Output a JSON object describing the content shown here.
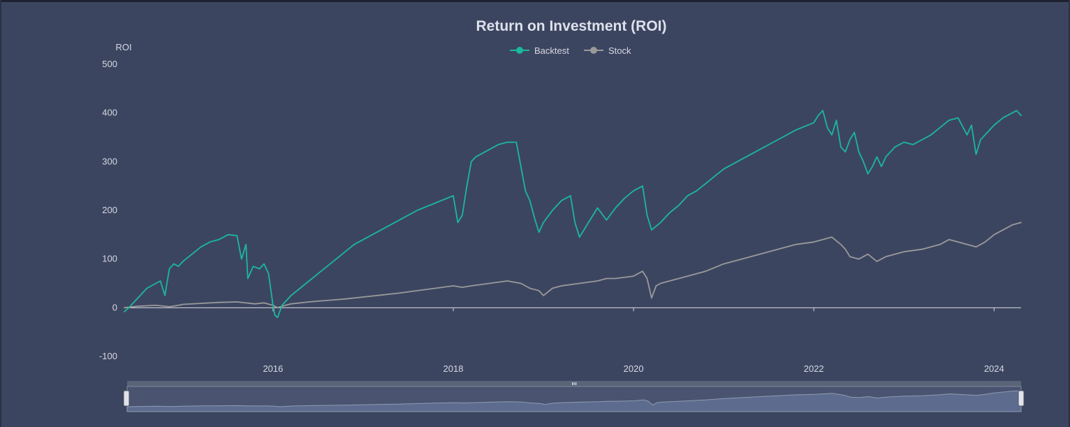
{
  "chart_data": {
    "type": "line",
    "title": "Return on Investment (ROI)",
    "ylabel": "ROI",
    "xlabel": "",
    "ylim": [
      -100,
      500
    ],
    "yticks": [
      -100,
      0,
      100,
      200,
      300,
      400,
      500
    ],
    "xlim": [
      2014.35,
      2024.3
    ],
    "xticks": [
      2016,
      2018,
      2020,
      2022,
      2024
    ],
    "grid": false,
    "legend_position": "top-center",
    "series": [
      {
        "name": "Backtest",
        "color": "#1ab89c",
        "x": [
          2014.35,
          2014.4,
          2014.5,
          2014.6,
          2014.7,
          2014.75,
          2014.8,
          2014.85,
          2014.9,
          2014.95,
          2015.0,
          2015.1,
          2015.2,
          2015.3,
          2015.4,
          2015.5,
          2015.6,
          2015.65,
          2015.7,
          2015.72,
          2015.78,
          2015.85,
          2015.9,
          2015.95,
          2016.0,
          2016.02,
          2016.05,
          2016.1,
          2016.15,
          2016.2,
          2016.3,
          2016.4,
          2016.5,
          2016.6,
          2016.7,
          2016.8,
          2016.9,
          2017.0,
          2017.2,
          2017.4,
          2017.6,
          2017.8,
          2018.0,
          2018.05,
          2018.1,
          2018.15,
          2018.2,
          2018.25,
          2018.3,
          2018.4,
          2018.5,
          2018.6,
          2018.7,
          2018.75,
          2018.8,
          2018.85,
          2018.9,
          2018.95,
          2019.0,
          2019.1,
          2019.2,
          2019.3,
          2019.35,
          2019.4,
          2019.5,
          2019.6,
          2019.7,
          2019.8,
          2019.9,
          2020.0,
          2020.1,
          2020.15,
          2020.2,
          2020.3,
          2020.4,
          2020.5,
          2020.6,
          2020.7,
          2020.8,
          2020.9,
          2021.0,
          2021.2,
          2021.4,
          2021.6,
          2021.8,
          2022.0,
          2022.05,
          2022.1,
          2022.15,
          2022.2,
          2022.25,
          2022.3,
          2022.35,
          2022.4,
          2022.45,
          2022.5,
          2022.55,
          2022.6,
          2022.65,
          2022.7,
          2022.75,
          2022.8,
          2022.9,
          2023.0,
          2023.1,
          2023.2,
          2023.3,
          2023.4,
          2023.5,
          2023.6,
          2023.7,
          2023.75,
          2023.8,
          2023.85,
          2023.9,
          2023.95,
          2024.0,
          2024.1,
          2024.2,
          2024.25,
          2024.3
        ],
        "y": [
          -8,
          0,
          20,
          40,
          50,
          55,
          25,
          80,
          90,
          85,
          95,
          110,
          125,
          135,
          140,
          150,
          148,
          100,
          130,
          60,
          85,
          80,
          90,
          70,
          5,
          -15,
          -20,
          5,
          15,
          25,
          40,
          55,
          70,
          85,
          100,
          115,
          130,
          140,
          160,
          180,
          200,
          215,
          230,
          175,
          190,
          250,
          300,
          310,
          315,
          325,
          335,
          340,
          340,
          290,
          240,
          220,
          185,
          155,
          175,
          200,
          220,
          230,
          175,
          145,
          175,
          205,
          180,
          205,
          225,
          240,
          250,
          190,
          160,
          175,
          195,
          210,
          230,
          240,
          255,
          270,
          285,
          305,
          325,
          345,
          365,
          380,
          395,
          405,
          370,
          355,
          385,
          330,
          320,
          345,
          360,
          320,
          300,
          275,
          290,
          310,
          290,
          310,
          330,
          340,
          335,
          345,
          355,
          370,
          385,
          390,
          355,
          375,
          315,
          345,
          355,
          365,
          375,
          390,
          400,
          405,
          395
        ]
      },
      {
        "name": "Stock",
        "color": "#9a9a9a",
        "x": [
          2014.35,
          2014.5,
          2014.7,
          2014.85,
          2014.95,
          2015.0,
          2015.2,
          2015.4,
          2015.6,
          2015.7,
          2015.8,
          2015.9,
          2016.0,
          2016.05,
          2016.1,
          2016.2,
          2016.4,
          2016.6,
          2016.8,
          2017.0,
          2017.2,
          2017.4,
          2017.6,
          2017.8,
          2018.0,
          2018.1,
          2018.2,
          2018.4,
          2018.6,
          2018.75,
          2018.85,
          2018.95,
          2019.0,
          2019.1,
          2019.2,
          2019.4,
          2019.6,
          2019.7,
          2019.8,
          2020.0,
          2020.1,
          2020.15,
          2020.2,
          2020.25,
          2020.3,
          2020.4,
          2020.6,
          2020.8,
          2021.0,
          2021.2,
          2021.4,
          2021.6,
          2021.8,
          2022.0,
          2022.1,
          2022.2,
          2022.3,
          2022.35,
          2022.4,
          2022.5,
          2022.6,
          2022.7,
          2022.8,
          2022.9,
          2023.0,
          2023.2,
          2023.4,
          2023.5,
          2023.7,
          2023.8,
          2023.9,
          2024.0,
          2024.1,
          2024.2,
          2024.3
        ],
        "y": [
          0,
          3,
          5,
          2,
          5,
          7,
          9,
          11,
          12,
          10,
          8,
          10,
          5,
          0,
          3,
          8,
          12,
          15,
          18,
          22,
          26,
          30,
          35,
          40,
          45,
          42,
          45,
          50,
          55,
          50,
          40,
          35,
          25,
          40,
          45,
          50,
          55,
          60,
          60,
          65,
          75,
          60,
          20,
          45,
          50,
          55,
          65,
          75,
          90,
          100,
          110,
          120,
          130,
          135,
          140,
          145,
          130,
          120,
          105,
          100,
          110,
          95,
          105,
          110,
          115,
          120,
          130,
          140,
          130,
          125,
          135,
          150,
          160,
          170,
          175
        ]
      }
    ]
  },
  "zoom_slider": {
    "range_start_pct": 0,
    "range_end_pct": 100
  }
}
